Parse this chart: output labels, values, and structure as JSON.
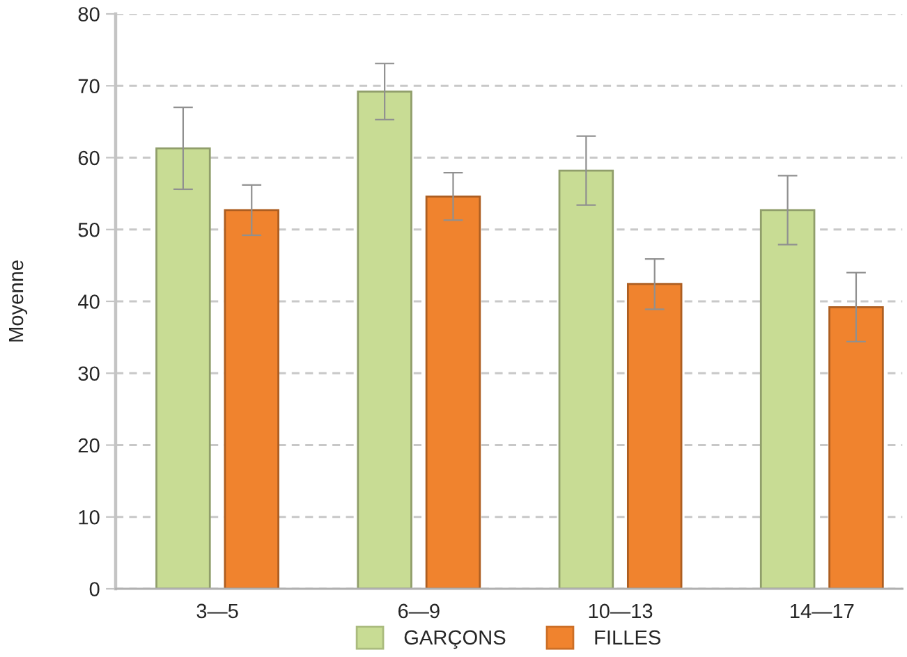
{
  "chart_data": {
    "type": "bar",
    "ylabel": "Moyenne",
    "categories": [
      "3—5",
      "6—9",
      "10—13",
      "14—17"
    ],
    "series": [
      {
        "name": "GARÇONS",
        "color": "#c8dc94",
        "values": [
          61.3,
          69.2,
          58.2,
          52.7
        ],
        "errors": [
          5.7,
          3.9,
          4.8,
          4.8
        ]
      },
      {
        "name": "FILLES",
        "color": "#f0832e",
        "values": [
          52.7,
          54.6,
          42.4,
          39.2
        ],
        "errors": [
          3.5,
          3.3,
          3.5,
          4.8
        ]
      }
    ],
    "ylim": [
      0,
      80
    ],
    "yticks": [
      0,
      10,
      20,
      30,
      40,
      50,
      60,
      70,
      80
    ],
    "grid": "y",
    "legend": "bottom"
  }
}
